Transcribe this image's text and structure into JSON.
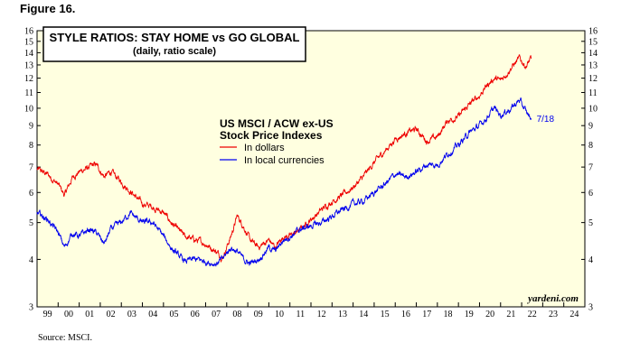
{
  "figure_label": "Figure 16.",
  "source": "Source: MSCI.",
  "colors": {
    "plot_bg": "#ffffe0",
    "usd": "#ee0000",
    "local": "#0000ee"
  },
  "chart_data": {
    "type": "line",
    "title": "STYLE RATIOS: STAY HOME vs GO GLOBAL",
    "subtitle": "(daily, ratio scale)",
    "legend_title": [
      "US MSCI / ACW ex-US",
      "Stock Price Indexes"
    ],
    "credit": "yardeni.com",
    "end_label": "7/18",
    "y_scale": "log",
    "ylim": [
      3,
      16
    ],
    "y_ticks": [
      3,
      4,
      5,
      6,
      7,
      8,
      9,
      10,
      11,
      12,
      13,
      14,
      15,
      16
    ],
    "xlim": [
      1999,
      2025
    ],
    "x_ticks": [
      "99",
      "00",
      "01",
      "02",
      "03",
      "04",
      "05",
      "06",
      "07",
      "08",
      "09",
      "10",
      "11",
      "12",
      "13",
      "14",
      "15",
      "16",
      "17",
      "18",
      "19",
      "20",
      "21",
      "22",
      "23",
      "24"
    ],
    "grid": false,
    "series": [
      {
        "name": "In dollars",
        "color": "#ee0000",
        "points": [
          [
            1999.0,
            6.9
          ],
          [
            1999.5,
            6.7
          ],
          [
            2000.0,
            6.3
          ],
          [
            2000.3,
            5.9
          ],
          [
            2000.7,
            6.6
          ],
          [
            2001.0,
            6.8
          ],
          [
            2001.5,
            7.0
          ],
          [
            2001.8,
            7.1
          ],
          [
            2002.2,
            6.6
          ],
          [
            2002.5,
            6.8
          ],
          [
            2003.0,
            6.4
          ],
          [
            2003.5,
            6.0
          ],
          [
            2004.0,
            5.6
          ],
          [
            2004.5,
            5.5
          ],
          [
            2005.0,
            5.3
          ],
          [
            2005.5,
            4.9
          ],
          [
            2006.0,
            4.6
          ],
          [
            2006.5,
            4.5
          ],
          [
            2007.0,
            4.4
          ],
          [
            2007.5,
            4.2
          ],
          [
            2007.8,
            4.05
          ],
          [
            2008.2,
            4.6
          ],
          [
            2008.5,
            5.2
          ],
          [
            2008.8,
            4.9
          ],
          [
            2009.1,
            4.5
          ],
          [
            2009.5,
            4.3
          ],
          [
            2010.0,
            4.5
          ],
          [
            2010.3,
            4.3
          ],
          [
            2010.7,
            4.6
          ],
          [
            2011.0,
            4.6
          ],
          [
            2011.5,
            4.8
          ],
          [
            2012.0,
            5.1
          ],
          [
            2012.5,
            5.4
          ],
          [
            2013.0,
            5.7
          ],
          [
            2013.5,
            5.9
          ],
          [
            2014.0,
            6.2
          ],
          [
            2014.5,
            6.6
          ],
          [
            2015.0,
            7.2
          ],
          [
            2015.5,
            7.7
          ],
          [
            2016.0,
            8.3
          ],
          [
            2016.5,
            8.6
          ],
          [
            2017.0,
            8.8
          ],
          [
            2017.5,
            8.2
          ],
          [
            2018.0,
            8.4
          ],
          [
            2018.5,
            9.3
          ],
          [
            2019.0,
            9.5
          ],
          [
            2019.5,
            10.2
          ],
          [
            2020.0,
            10.8
          ],
          [
            2020.3,
            11.4
          ],
          [
            2020.7,
            12.0
          ],
          [
            2021.0,
            11.8
          ],
          [
            2021.5,
            12.8
          ],
          [
            2021.9,
            13.5
          ],
          [
            2022.2,
            12.9
          ],
          [
            2022.45,
            13.5
          ]
        ]
      },
      {
        "name": "In local currencies",
        "color": "#0000ee",
        "points": [
          [
            1999.0,
            5.3
          ],
          [
            1999.5,
            5.1
          ],
          [
            2000.0,
            4.7
          ],
          [
            2000.3,
            4.3
          ],
          [
            2000.7,
            4.7
          ],
          [
            2001.0,
            4.6
          ],
          [
            2001.5,
            4.8
          ],
          [
            2001.8,
            4.7
          ],
          [
            2002.2,
            4.4
          ],
          [
            2002.5,
            4.8
          ],
          [
            2003.0,
            5.0
          ],
          [
            2003.4,
            5.3
          ],
          [
            2004.0,
            5.0
          ],
          [
            2004.5,
            5.0
          ],
          [
            2005.0,
            4.6
          ],
          [
            2005.5,
            4.2
          ],
          [
            2006.0,
            3.95
          ],
          [
            2006.5,
            4.0
          ],
          [
            2007.0,
            3.95
          ],
          [
            2007.5,
            3.9
          ],
          [
            2007.8,
            4.0
          ],
          [
            2008.2,
            4.3
          ],
          [
            2008.5,
            4.2
          ],
          [
            2008.8,
            4.0
          ],
          [
            2009.1,
            3.9
          ],
          [
            2009.5,
            4.0
          ],
          [
            2010.0,
            4.3
          ],
          [
            2010.3,
            4.2
          ],
          [
            2010.7,
            4.5
          ],
          [
            2011.0,
            4.6
          ],
          [
            2011.5,
            4.8
          ],
          [
            2012.0,
            4.9
          ],
          [
            2012.5,
            5.0
          ],
          [
            2013.0,
            5.2
          ],
          [
            2013.5,
            5.4
          ],
          [
            2014.0,
            5.6
          ],
          [
            2014.5,
            5.7
          ],
          [
            2015.0,
            6.0
          ],
          [
            2015.5,
            6.3
          ],
          [
            2016.0,
            6.7
          ],
          [
            2016.5,
            6.6
          ],
          [
            2017.0,
            6.8
          ],
          [
            2017.5,
            7.1
          ],
          [
            2018.0,
            7.1
          ],
          [
            2018.5,
            7.6
          ],
          [
            2019.0,
            8.0
          ],
          [
            2019.5,
            8.6
          ],
          [
            2020.0,
            9.0
          ],
          [
            2020.3,
            9.4
          ],
          [
            2020.7,
            10.0
          ],
          [
            2021.0,
            9.6
          ],
          [
            2021.5,
            10.0
          ],
          [
            2021.9,
            10.5
          ],
          [
            2022.2,
            9.8
          ],
          [
            2022.45,
            9.4
          ]
        ]
      }
    ]
  }
}
